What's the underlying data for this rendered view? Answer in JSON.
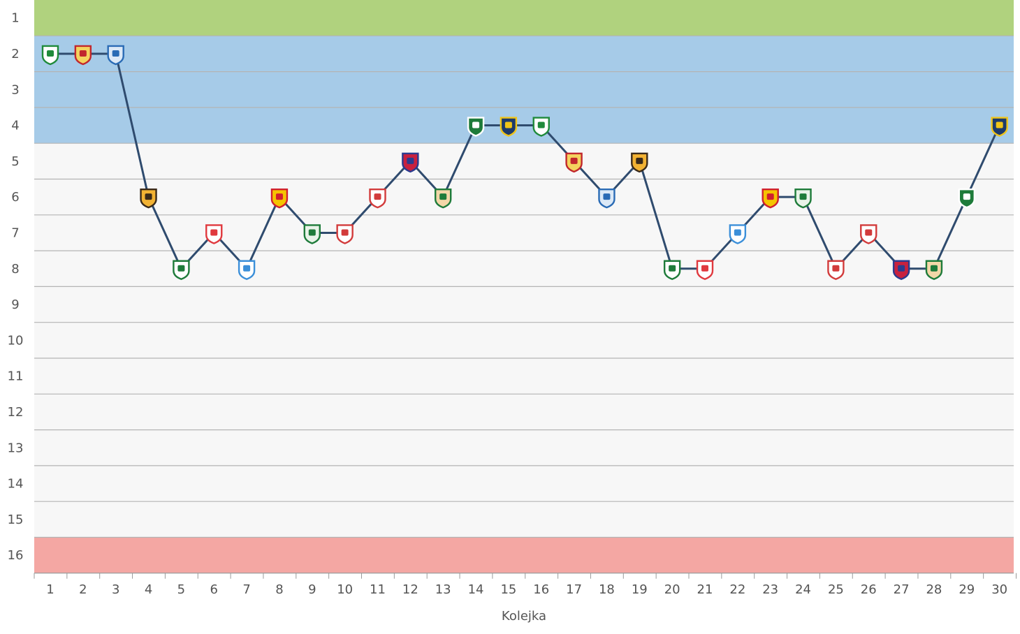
{
  "chart_data": {
    "type": "line",
    "xlabel": "Kolejka",
    "ylabel": "",
    "xlim": [
      1,
      30
    ],
    "ylim": [
      1,
      16
    ],
    "y_reversed": true,
    "grid": true,
    "x_ticks": [
      1,
      2,
      3,
      4,
      5,
      6,
      7,
      8,
      9,
      10,
      11,
      12,
      13,
      14,
      15,
      16,
      17,
      18,
      19,
      20,
      21,
      22,
      23,
      24,
      25,
      26,
      27,
      28,
      29,
      30
    ],
    "y_ticks": [
      1,
      2,
      3,
      4,
      5,
      6,
      7,
      8,
      9,
      10,
      11,
      12,
      13,
      14,
      15,
      16
    ],
    "bands": [
      {
        "from": 1,
        "to": 1,
        "color": "#b0d27e"
      },
      {
        "from": 2,
        "to": 4,
        "color": "#a6cbe8"
      },
      {
        "from": 5,
        "to": 15,
        "color": "#f7f7f7"
      },
      {
        "from": 16,
        "to": 16,
        "color": "#f4a7a3"
      }
    ],
    "series": [
      {
        "line_color": "#2f4b6e",
        "x": [
          1,
          2,
          3,
          4,
          5,
          6,
          7,
          8,
          9,
          10,
          11,
          12,
          13,
          14,
          15,
          16,
          17,
          18,
          19,
          20,
          21,
          22,
          23,
          24,
          25,
          26,
          27,
          28,
          29,
          30
        ],
        "values": [
          2,
          2,
          2,
          6,
          8,
          7,
          8,
          6,
          7,
          7,
          6,
          5,
          6,
          4,
          4,
          4,
          5,
          6,
          5,
          8,
          8,
          7,
          6,
          6,
          8,
          7,
          8,
          8,
          6,
          4
        ],
        "opponent_icons": [
          "piast-gliwice-crest-icon",
          "wisla-plock-crest-icon",
          "lech-poznan-crest-icon",
          "pogon-szczecin-crest-icon",
          "legia-warszawa-crest-icon",
          "cracovia-crest-icon",
          "zaglebie-lubin-crest-icon",
          "korona-kielce-crest-icon",
          "lechia-gdansk-crest-icon",
          "gornik-zabrze-crest-icon",
          "wisla-krakow-crest-icon",
          "rakow-czestochowa-crest-icon",
          "jagiellonia-crest-icon",
          "warta-poznan-crest-icon",
          "stal-mielec-crest-icon",
          "piast-gliwice-crest-icon",
          "wisla-plock-crest-icon",
          "lech-poznan-crest-icon",
          "pogon-szczecin-crest-icon",
          "legia-warszawa-crest-icon",
          "cracovia-crest-icon",
          "zaglebie-lubin-crest-icon",
          "korona-kielce-crest-icon",
          "lechia-gdansk-crest-icon",
          "gornik-zabrze-crest-icon",
          "wisla-krakow-crest-icon",
          "rakow-czestochowa-crest-icon",
          "jagiellonia-crest-icon",
          "warta-poznan-crest-icon",
          "stal-mielec-crest-icon"
        ]
      }
    ]
  }
}
